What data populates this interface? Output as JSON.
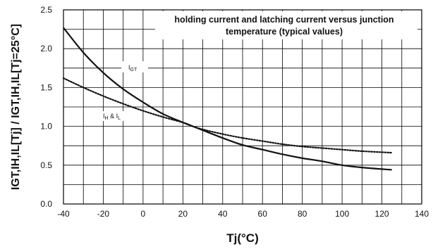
{
  "chart_data": {
    "type": "line",
    "title": [
      "holding current and latching current versus junction",
      "temperature (typical values)"
    ],
    "xlabel": "Tj(°C)",
    "ylabel": "IGT,IH,IL[Tj] / IGT,IH,IL[Tj=25°C]",
    "xlim": [
      -40,
      140
    ],
    "ylim": [
      0.0,
      2.5
    ],
    "xticks": [
      -40,
      -20,
      0,
      20,
      40,
      60,
      80,
      100,
      120,
      140
    ],
    "xtick_labels": [
      "-40",
      "-20",
      "0",
      "20",
      "40",
      "60",
      "80",
      "100",
      "120",
      "140"
    ],
    "yticks": [
      0.0,
      0.5,
      1.0,
      1.5,
      2.0,
      2.5
    ],
    "ytick_labels": [
      "0.0",
      "0.5",
      "1.0",
      "1.5",
      "2.0",
      "2.5"
    ],
    "grid": true,
    "series": [
      {
        "name": "IGT",
        "style": "solid",
        "x": [
          -40,
          -30,
          -20,
          -10,
          0,
          10,
          20,
          25,
          30,
          40,
          50,
          60,
          70,
          80,
          90,
          100,
          110,
          125
        ],
        "y": [
          2.27,
          1.95,
          1.69,
          1.48,
          1.31,
          1.16,
          1.05,
          1.0,
          0.95,
          0.85,
          0.76,
          0.7,
          0.64,
          0.59,
          0.55,
          0.5,
          0.47,
          0.44
        ]
      },
      {
        "name": "IH & IL",
        "style": "dotted",
        "x": [
          -40,
          -30,
          -20,
          -10,
          0,
          10,
          20,
          25,
          30,
          40,
          50,
          60,
          70,
          80,
          90,
          100,
          110,
          125
        ],
        "y": [
          1.62,
          1.5,
          1.39,
          1.29,
          1.2,
          1.12,
          1.05,
          1.0,
          0.96,
          0.9,
          0.85,
          0.81,
          0.77,
          0.74,
          0.72,
          0.7,
          0.68,
          0.66
        ]
      }
    ],
    "annotations": [
      {
        "label": "IGT",
        "main": "I",
        "sub": "GT"
      },
      {
        "label": "IH & IL",
        "main": "I",
        "sub": "H",
        "mid": " & I",
        "sub2": "L"
      }
    ]
  }
}
